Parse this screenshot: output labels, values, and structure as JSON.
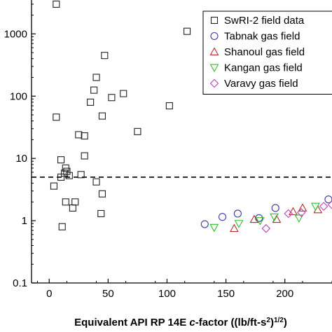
{
  "chart_data": {
    "type": "scatter",
    "xaxis": {
      "label_parts": [
        "Equivalent API RP 14E ",
        "c",
        "-factor ((lb/ft-s",
        "2",
        ")",
        "1/2",
        ")"
      ],
      "range": [
        -15,
        240
      ],
      "ticks": [
        0,
        50,
        100,
        150,
        200
      ],
      "tick_labels": [
        "0",
        "50",
        "100",
        "150",
        "200"
      ]
    },
    "yaxis": {
      "scale": "log",
      "range": [
        0.1,
        3500
      ],
      "ticks": [
        0.1,
        1,
        10,
        100,
        1000
      ],
      "tick_labels": [
        "0.1",
        "1",
        "10",
        "100",
        "1000"
      ]
    },
    "reference_line": {
      "y": 5,
      "style": "dashed"
    },
    "legend": {
      "position": "top-right"
    },
    "series": [
      {
        "name": "SwRI-2 field data",
        "marker": "square",
        "color": "#222222",
        "points": [
          [
            6,
            3000
          ],
          [
            117,
            1100
          ],
          [
            47,
            450
          ],
          [
            40,
            200
          ],
          [
            38,
            125
          ],
          [
            35,
            80
          ],
          [
            63,
            110
          ],
          [
            53,
            95
          ],
          [
            45,
            48
          ],
          [
            102,
            70
          ],
          [
            75,
            27
          ],
          [
            6,
            46
          ],
          [
            25,
            24
          ],
          [
            30,
            23
          ],
          [
            30,
            11
          ],
          [
            10,
            9.5
          ],
          [
            14,
            7
          ],
          [
            15,
            6.2
          ],
          [
            13,
            5.8
          ],
          [
            17,
            5.3
          ],
          [
            27,
            5.5
          ],
          [
            10,
            5
          ],
          [
            4,
            3.6
          ],
          [
            40,
            4.2
          ],
          [
            14,
            2
          ],
          [
            20,
            1.6
          ],
          [
            22,
            2
          ],
          [
            45,
            2.7
          ],
          [
            44,
            1.3
          ],
          [
            11,
            0.8
          ]
        ]
      },
      {
        "name": "Tabnak gas field",
        "marker": "circle",
        "color": "#3a3aa0",
        "points": [
          [
            132,
            0.88
          ],
          [
            147,
            1.15
          ],
          [
            160,
            1.3
          ],
          [
            178,
            1.1
          ],
          [
            192,
            1.6
          ],
          [
            237,
            2.2
          ]
        ]
      },
      {
        "name": "Shanoul gas field",
        "marker": "triangle-up",
        "color": "#b03030",
        "points": [
          [
            157,
            0.75
          ],
          [
            174,
            1.05
          ],
          [
            193,
            1.05
          ],
          [
            207,
            1.4
          ],
          [
            215,
            1.6
          ],
          [
            228,
            1.5
          ]
        ]
      },
      {
        "name": "Kangan gas field",
        "marker": "triangle-down",
        "color": "#2fbf2f",
        "points": [
          [
            140,
            0.78
          ],
          [
            161,
            0.9
          ],
          [
            179,
            1.0
          ],
          [
            191,
            1.15
          ],
          [
            212,
            1.1
          ],
          [
            226,
            1.7
          ]
        ]
      },
      {
        "name": "Varavy gas field",
        "marker": "diamond",
        "color": "#c040c0",
        "points": [
          [
            184,
            0.75
          ],
          [
            203,
            1.3
          ],
          [
            214,
            1.35
          ],
          [
            233,
            1.7
          ],
          [
            240,
            1.8
          ]
        ]
      }
    ]
  }
}
